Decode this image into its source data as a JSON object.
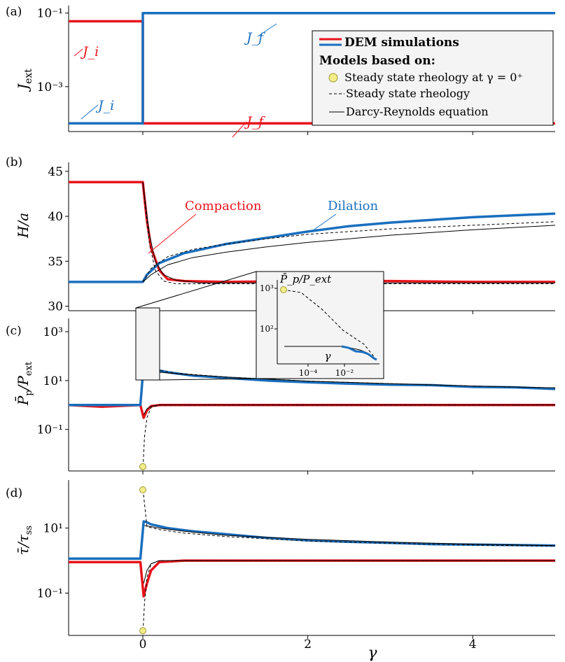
{
  "colors": {
    "red": "#e8141c",
    "blue": "#1a6fbe",
    "black": "#000000",
    "marker": "#f2ec8a",
    "legend_bg": "#f4f4f4"
  },
  "legend": {
    "dem": "DEM simulations",
    "models_header": "Models based on:",
    "steady_zero": "Steady state rheology at γ = 0⁺",
    "steady": "Steady state rheology",
    "darcy": "Darcy-Reynolds equation"
  },
  "x_axis": {
    "label": "γ",
    "ticks": [
      "0",
      "2",
      "4"
    ],
    "range": [
      -0.9,
      5.0
    ]
  },
  "chart_data": [
    {
      "panel": "(a)",
      "type": "line",
      "ylabel": "J_ext",
      "yscale": "log",
      "yticks": [
        "10⁻¹",
        "10⁻³"
      ],
      "annotations": {
        "red_left": "J_i",
        "red_right": "J_f",
        "blue_left": "J_i",
        "blue_right": "J_f"
      },
      "series": [
        {
          "name": "red",
          "x": [
            -0.9,
            0,
            0,
            5.0
          ],
          "y": [
            0.06,
            0.06,
            0.0001,
            0.0001
          ]
        },
        {
          "name": "blue",
          "x": [
            -0.9,
            0,
            0,
            5.0
          ],
          "y": [
            0.0001,
            0.0001,
            0.1,
            0.1
          ]
        }
      ]
    },
    {
      "panel": "(b)",
      "type": "line",
      "ylabel": "H/a",
      "ylim": [
        29.5,
        46
      ],
      "yticks": [
        "30",
        "35",
        "40",
        "45"
      ],
      "annotations": {
        "compaction": "Compaction",
        "dilation": "Dilation"
      },
      "series": [
        {
          "name": "red",
          "x": [
            -0.9,
            -0.02,
            0,
            0.02,
            0.05,
            0.1,
            0.2,
            0.3,
            0.5,
            1,
            2,
            3,
            4,
            5
          ],
          "y": [
            43.8,
            43.8,
            43.8,
            42.0,
            39.5,
            36.5,
            34.0,
            33.0,
            32.8,
            32.7,
            32.8,
            32.8,
            32.7,
            32.7
          ]
        },
        {
          "name": "blue",
          "x": [
            -0.9,
            0,
            0.05,
            0.2,
            0.5,
            1,
            1.5,
            2,
            2.5,
            3,
            3.5,
            4,
            4.5,
            5
          ],
          "y": [
            32.7,
            32.7,
            33.5,
            34.8,
            35.9,
            36.9,
            37.6,
            38.3,
            38.9,
            39.3,
            39.6,
            39.9,
            40.1,
            40.3
          ]
        },
        {
          "name": "steady-up",
          "x": [
            0,
            0.1,
            0.3,
            0.6,
            1,
            1.5,
            2,
            3,
            4,
            5
          ],
          "y": [
            32.7,
            34.2,
            35.5,
            36.3,
            36.9,
            37.5,
            38.0,
            38.6,
            39.0,
            39.4
          ]
        },
        {
          "name": "darcy-up",
          "x": [
            0,
            0.1,
            0.3,
            0.6,
            1,
            1.5,
            2,
            3,
            4,
            5
          ],
          "y": [
            32.7,
            33.5,
            34.6,
            35.4,
            36.0,
            36.6,
            37.1,
            37.9,
            38.5,
            39.0
          ]
        },
        {
          "name": "steady-down",
          "x": [
            0,
            0.03,
            0.08,
            0.15,
            0.25,
            0.4,
            5
          ],
          "y": [
            43.8,
            41.0,
            37.0,
            34.0,
            32.8,
            32.5,
            32.5
          ]
        },
        {
          "name": "darcy-down",
          "x": [
            0,
            0.03,
            0.08,
            0.15,
            0.25,
            0.4,
            0.7,
            5
          ],
          "y": [
            43.8,
            41.5,
            38.0,
            35.0,
            33.5,
            32.9,
            32.6,
            32.6
          ]
        }
      ]
    },
    {
      "panel": "(c)",
      "type": "line",
      "ylabel": "P̄_p/P_ext",
      "yscale": "log",
      "yticks": [
        "10³",
        "10¹",
        "10⁻¹"
      ],
      "inset": {
        "ylabel": "P̄_p/P_ext",
        "xlabel": "γ",
        "yticks": [
          "10³",
          "10²"
        ],
        "xticks": [
          "10⁻⁴",
          "10⁻²"
        ]
      },
      "markers": [
        {
          "x": 0,
          "y": 1000
        },
        {
          "x": 0,
          "y": 0.003
        }
      ],
      "series": [
        {
          "name": "red",
          "x": [
            -0.9,
            -0.5,
            -0.03,
            0.01,
            0.05,
            0.1,
            0.2,
            0.5,
            1,
            2,
            3,
            4,
            5
          ],
          "y": [
            1.0,
            0.85,
            1.0,
            0.3,
            0.6,
            0.9,
            1.0,
            1.0,
            1.0,
            1.0,
            1.0,
            1.0,
            1.0
          ]
        },
        {
          "name": "blue",
          "x": [
            -0.9,
            -0.03,
            0.01,
            0.05,
            0.1,
            0.3,
            0.6,
            1,
            1.5,
            2,
            2.5,
            3,
            3.5,
            4,
            4.5,
            5
          ],
          "y": [
            1.0,
            1.0,
            45,
            40,
            30,
            22,
            16,
            13,
            10,
            8.5,
            7.5,
            6.8,
            6.5,
            5.5,
            5.3,
            4.5
          ]
        },
        {
          "name": "steady-up",
          "x": [
            0.002,
            0.05,
            0.15,
            0.4,
            1,
            2,
            3,
            4,
            5
          ],
          "y": [
            1000,
            40,
            28,
            20,
            14,
            9.5,
            7.5,
            6.0,
            5.0
          ]
        },
        {
          "name": "darcy-up",
          "x": [
            0.02,
            0.2,
            0.5,
            1,
            2,
            3,
            4,
            5
          ],
          "y": [
            30,
            22,
            18,
            14,
            9.5,
            7.5,
            6.0,
            5.0
          ]
        },
        {
          "name": "steady-down",
          "x": [
            0.002,
            0.02,
            0.05,
            0.1,
            0.2,
            5
          ],
          "y": [
            0.003,
            0.05,
            0.3,
            0.8,
            1.0,
            1.0
          ]
        },
        {
          "name": "darcy-down",
          "x": [
            0.01,
            0.05,
            0.1,
            0.2,
            5
          ],
          "y": [
            0.4,
            0.7,
            0.9,
            1.0,
            1.0
          ]
        }
      ]
    },
    {
      "panel": "(d)",
      "type": "line",
      "ylabel": "τ̄/τ_ss",
      "yscale": "log",
      "yticks": [
        "10¹",
        "10⁻¹"
      ],
      "markers": [
        {
          "x": 0,
          "y": 150
        },
        {
          "x": 0,
          "y": 0.007
        }
      ],
      "series": [
        {
          "name": "red",
          "x": [
            -0.9,
            -0.03,
            0.01,
            0.05,
            0.1,
            0.2,
            0.5,
            1,
            2,
            3,
            4,
            5
          ],
          "y": [
            0.9,
            0.9,
            0.08,
            0.2,
            0.5,
            0.9,
            1.0,
            1.0,
            1.0,
            1.0,
            1.0,
            1.0
          ]
        },
        {
          "name": "blue",
          "x": [
            -0.9,
            -0.03,
            0.01,
            0.05,
            0.1,
            0.3,
            0.6,
            1,
            1.5,
            2,
            2.5,
            3,
            3.5,
            4,
            4.5,
            5
          ],
          "y": [
            1.15,
            1.15,
            16,
            15,
            13,
            10,
            8.0,
            6.5,
            5.0,
            4.2,
            3.8,
            3.5,
            3.2,
            3.1,
            3.0,
            2.9
          ]
        },
        {
          "name": "steady-up",
          "x": [
            0.002,
            0.05,
            0.2,
            0.5,
            1,
            2,
            3,
            4,
            5
          ],
          "y": [
            150,
            11,
            9,
            7,
            5.5,
            4.0,
            3.4,
            3.0,
            2.8
          ]
        },
        {
          "name": "darcy-up",
          "x": [
            0.02,
            0.2,
            0.5,
            1,
            2,
            3,
            4,
            5
          ],
          "y": [
            12,
            10,
            8,
            6,
            4.5,
            3.7,
            3.2,
            2.9
          ]
        },
        {
          "name": "steady-down",
          "x": [
            0.002,
            0.02,
            0.05,
            0.1,
            0.2,
            5
          ],
          "y": [
            0.007,
            0.05,
            0.3,
            0.8,
            1.0,
            1.0
          ]
        },
        {
          "name": "darcy-down",
          "x": [
            0.01,
            0.05,
            0.1,
            0.2,
            5
          ],
          "y": [
            0.2,
            0.5,
            0.8,
            1.0,
            1.0
          ]
        }
      ]
    }
  ]
}
